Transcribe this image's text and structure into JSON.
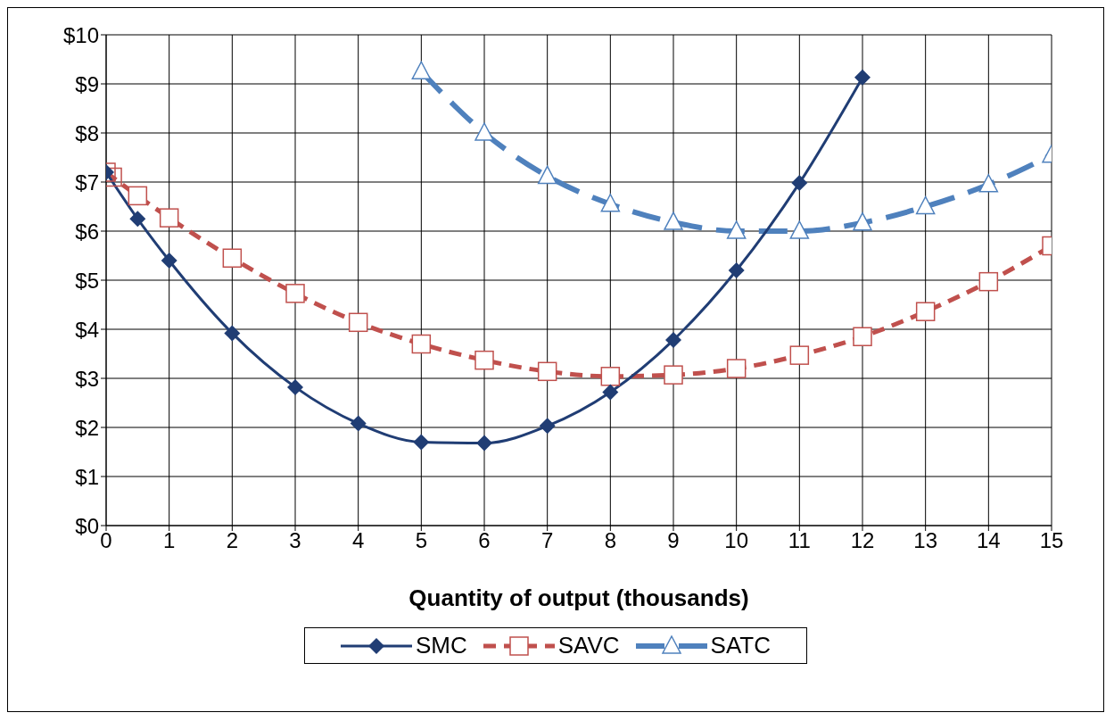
{
  "chart_data": {
    "type": "line",
    "xlabel": "Quantity of output (thousands)",
    "xlim": [
      0,
      15
    ],
    "xticks": [
      0,
      1,
      2,
      3,
      4,
      5,
      6,
      7,
      8,
      9,
      10,
      11,
      12,
      13,
      14,
      15
    ],
    "ylim": [
      0,
      10
    ],
    "yticks": [
      {
        "value": 0,
        "label": "$0"
      },
      {
        "value": 1,
        "label": "$1"
      },
      {
        "value": 2,
        "label": "$2"
      },
      {
        "value": 3,
        "label": "$3"
      },
      {
        "value": 4,
        "label": "$4"
      },
      {
        "value": 5,
        "label": "$5"
      },
      {
        "value": 6,
        "label": "$6"
      },
      {
        "value": 7,
        "label": "$7"
      },
      {
        "value": 8,
        "label": "$8"
      },
      {
        "value": 9,
        "label": "$9"
      },
      {
        "value": 10,
        "label": "$10"
      }
    ],
    "grid": true,
    "legend": "bottom",
    "series": [
      {
        "name": "SMC",
        "color": "#203d74",
        "marker": "diamond",
        "line_style": "solid",
        "x": [
          0,
          0.5,
          1,
          2,
          3,
          4,
          5,
          6,
          7,
          8,
          9,
          10,
          11,
          12
        ],
        "values": [
          7.2,
          6.25,
          5.4,
          3.92,
          2.82,
          2.08,
          1.7,
          1.68,
          2.03,
          2.72,
          3.78,
          5.2,
          6.98,
          9.13
        ]
      },
      {
        "name": "SAVC",
        "color": "#c0504d",
        "marker": "square",
        "line_style": "dashed",
        "x": [
          0,
          0.1,
          0.5,
          1,
          2,
          3,
          4,
          5,
          6,
          7,
          8,
          9,
          10,
          11,
          12,
          13,
          14,
          15
        ],
        "values": [
          7.2,
          7.1,
          6.72,
          6.27,
          5.45,
          4.73,
          4.14,
          3.7,
          3.37,
          3.14,
          3.04,
          3.07,
          3.2,
          3.47,
          3.85,
          4.36,
          4.97,
          5.7
        ]
      },
      {
        "name": "SATC",
        "color": "#4f81bd",
        "marker": "triangle",
        "line_style": "dashed",
        "x": [
          5,
          6,
          7,
          8,
          9,
          10,
          11,
          12,
          13,
          14,
          15
        ],
        "values": [
          9.25,
          8.0,
          7.12,
          6.55,
          6.18,
          6.0,
          6.0,
          6.17,
          6.5,
          6.95,
          7.55
        ]
      }
    ]
  }
}
